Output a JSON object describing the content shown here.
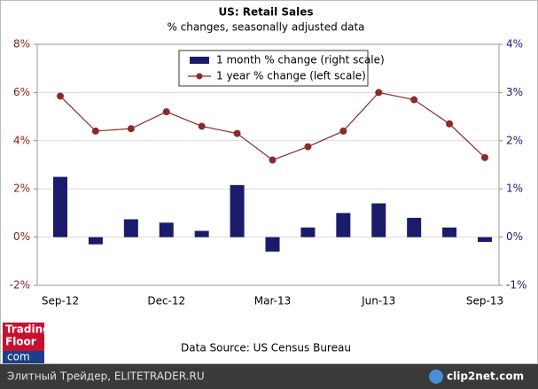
{
  "chart_data": {
    "type": "combo",
    "title": "US: Retail Sales",
    "subtitle": "% changes, seasonally adjusted data",
    "categories": [
      "Sep-12",
      null,
      null,
      "Dec-12",
      null,
      null,
      "Mar-13",
      null,
      null,
      "Jun-13",
      null,
      null,
      "Sep-13"
    ],
    "series": [
      {
        "name": "1 month % change (right scale)",
        "type": "bar",
        "axis": "y2",
        "color": "#1b1b6b",
        "values": [
          1.25,
          -0.15,
          0.37,
          0.3,
          0.13,
          1.08,
          -0.3,
          0.2,
          0.5,
          0.7,
          0.4,
          0.2,
          -0.1
        ]
      },
      {
        "name": "1 year % change (left scale)",
        "type": "line",
        "color": "#8b2a2a",
        "values": [
          5.85,
          4.4,
          4.5,
          5.2,
          4.6,
          4.3,
          3.2,
          3.75,
          4.4,
          6.0,
          5.7,
          4.7,
          3.3
        ]
      }
    ],
    "ylim": [
      -2,
      8
    ],
    "yticks": [
      {
        "value": -2,
        "label": "-2%"
      },
      {
        "value": 0,
        "label": "0%"
      },
      {
        "value": 2,
        "label": "2%"
      },
      {
        "value": 4,
        "label": "4%"
      },
      {
        "value": 6,
        "label": "6%"
      },
      {
        "value": 8,
        "label": "8%"
      }
    ],
    "y2lim": [
      -1,
      4
    ],
    "y2ticks": [
      {
        "value": -1,
        "label": "-1%"
      },
      {
        "value": 0,
        "label": "0%"
      },
      {
        "value": 1,
        "label": "1%"
      },
      {
        "value": 2,
        "label": "2%"
      },
      {
        "value": 3,
        "label": "3%"
      },
      {
        "value": 4,
        "label": "4%"
      }
    ],
    "grid": true,
    "legend": "top",
    "source": "Data Source: US Census Bureau"
  },
  "logo": [
    "Trading",
    "Floor",
    "com"
  ],
  "footer_left": "Элитный Трейдер, ELITETRADER.RU",
  "footer_right": "clip2net.com"
}
